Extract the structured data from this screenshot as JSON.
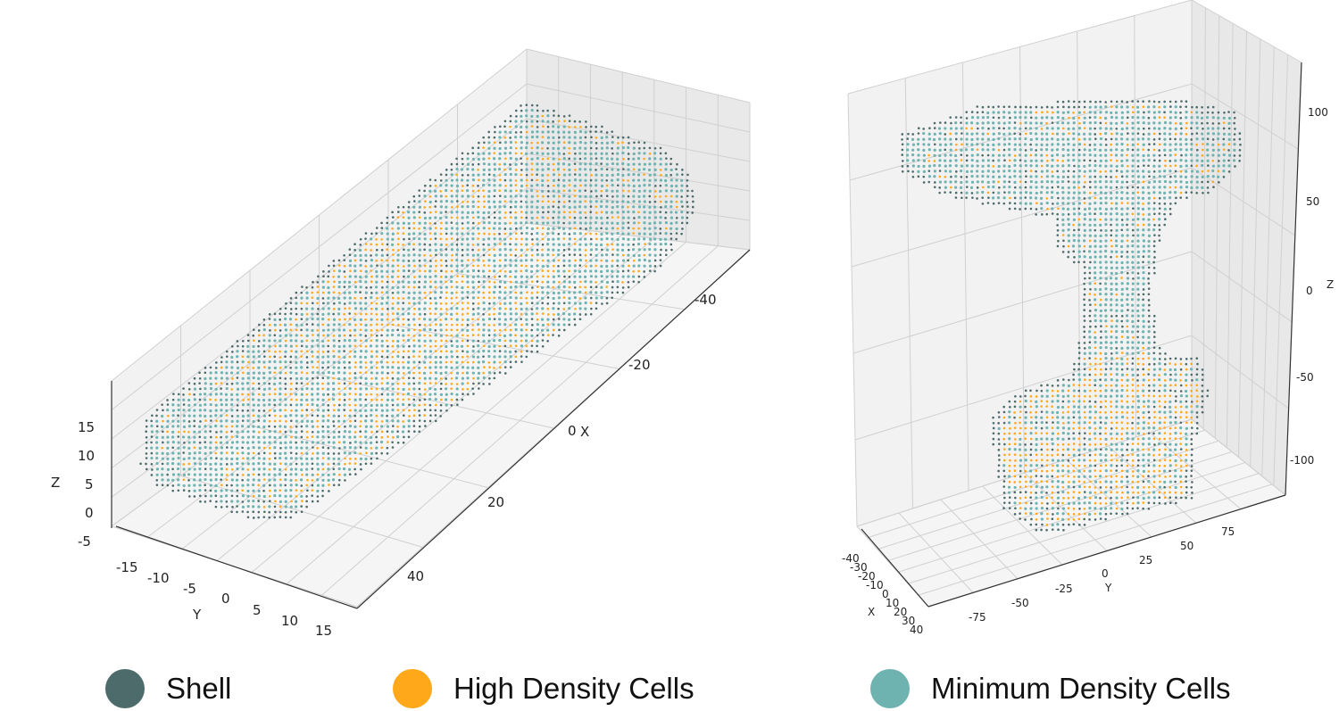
{
  "chart_data": [
    {
      "type": "scatter",
      "projection": "3d",
      "grid": true,
      "xlabel": "X",
      "ylabel": "Y",
      "zlabel": "Z",
      "x_ticks": [
        "40",
        "20",
        "0",
        "-20",
        "-40"
      ],
      "y_ticks": [
        "-15",
        "-10",
        "-5",
        "0",
        "5",
        "10",
        "15"
      ],
      "z_ticks": [
        "15",
        "10",
        "5",
        "0",
        "-5"
      ],
      "xlim": [
        50,
        -50
      ],
      "ylim": [
        -18,
        18
      ],
      "zlim": [
        -5,
        18
      ],
      "series": [
        {
          "name": "Shell",
          "color": "#4d6b6b"
        },
        {
          "name": "High Density Cells",
          "color": "#ffa81a"
        },
        {
          "name": "Minimum Density Cells",
          "color": "#6fb3b1"
        }
      ]
    },
    {
      "type": "scatter",
      "projection": "3d",
      "grid": true,
      "xlabel": "X",
      "ylabel": "Y",
      "zlabel": "Z",
      "x_ticks": [
        "-40",
        "-30",
        "-20",
        "-10",
        "0",
        "10",
        "20",
        "30",
        "40"
      ],
      "y_ticks": [
        "-75",
        "-50",
        "-25",
        "0",
        "25",
        "50",
        "75"
      ],
      "z_ticks": [
        "100",
        "50",
        "0",
        "-50",
        "-100"
      ],
      "xlim": [
        -40,
        40
      ],
      "ylim": [
        -90,
        90
      ],
      "zlim": [
        -120,
        120
      ],
      "series": [
        {
          "name": "Shell",
          "color": "#4d6b6b"
        },
        {
          "name": "High Density Cells",
          "color": "#ffa81a"
        },
        {
          "name": "Minimum Density Cells",
          "color": "#6fb3b1"
        }
      ]
    }
  ],
  "legend": {
    "placement": "bottom",
    "items": [
      {
        "label": "Shell",
        "color": "#4d6b6b"
      },
      {
        "label": "High Density Cells",
        "color": "#ffa81a"
      },
      {
        "label": "Minimum Density Cells",
        "color": "#6fb3b1"
      }
    ]
  }
}
